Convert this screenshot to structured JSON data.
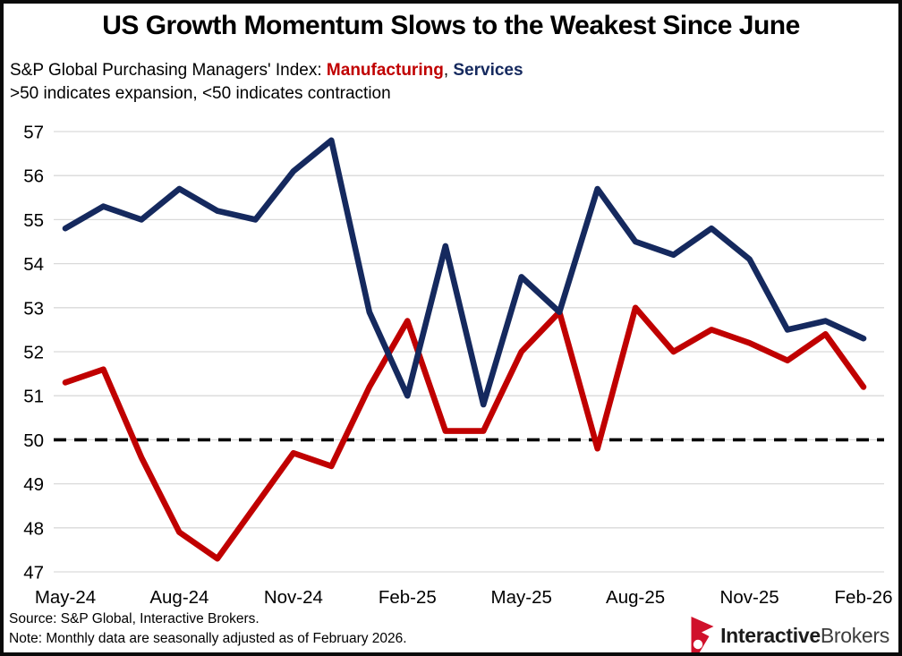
{
  "header": {
    "title": "US Growth Momentum Slows to the Weakest Since June",
    "subtitle_prefix": "S&P Global Purchasing Managers' Index: ",
    "legend_manufacturing": "Manufacturing",
    "legend_separator": ", ",
    "legend_services": "Services",
    "subtitle_line2": ">50 indicates expansion, <50 indicates contraction"
  },
  "chart_data": {
    "type": "line",
    "x": [
      "May-24",
      "Jun-24",
      "Jul-24",
      "Aug-24",
      "Sep-24",
      "Oct-24",
      "Nov-24",
      "Dec-24",
      "Jan-25",
      "Feb-25",
      "Mar-25",
      "Apr-25",
      "May-25",
      "Jun-25",
      "Jul-25",
      "Aug-25",
      "Sep-25",
      "Oct-25",
      "Nov-25",
      "Dec-25",
      "Jan-26",
      "Feb-26"
    ],
    "series": [
      {
        "name": "Manufacturing",
        "color": "#C00000",
        "values": [
          51.3,
          51.6,
          49.6,
          47.9,
          47.3,
          48.5,
          49.7,
          49.4,
          51.2,
          52.7,
          50.2,
          50.2,
          52.0,
          52.9,
          49.8,
          53.0,
          52.0,
          52.5,
          52.2,
          51.8,
          52.4,
          51.2
        ]
      },
      {
        "name": "Services",
        "color": "#15295E",
        "values": [
          54.8,
          55.3,
          55.0,
          55.7,
          55.2,
          55.0,
          56.1,
          56.8,
          52.9,
          51.0,
          54.4,
          50.8,
          53.7,
          52.9,
          55.7,
          54.5,
          54.2,
          54.8,
          54.1,
          52.5,
          52.7,
          52.3
        ]
      }
    ],
    "ylim": [
      47,
      57
    ],
    "ytick_step": 1,
    "xtick_labels": [
      "May-24",
      "Aug-24",
      "Nov-24",
      "Feb-25",
      "May-25",
      "Aug-25",
      "Nov-25",
      "Feb-26"
    ],
    "xtick_every": 3,
    "reference_line": {
      "value": 50,
      "style": "dashed",
      "color": "#000000"
    },
    "grid": true,
    "grid_color": "#D9D9D9",
    "legend_position": "in-subtitle"
  },
  "footer": {
    "source": "Source: S&P Global, Interactive Brokers.",
    "note": "Note: Monthly data are seasonally adjusted as of February 2026."
  },
  "logo": {
    "brand_bold": "Interactive",
    "brand_regular": "Brokers",
    "icon_color": "#D0112B"
  }
}
